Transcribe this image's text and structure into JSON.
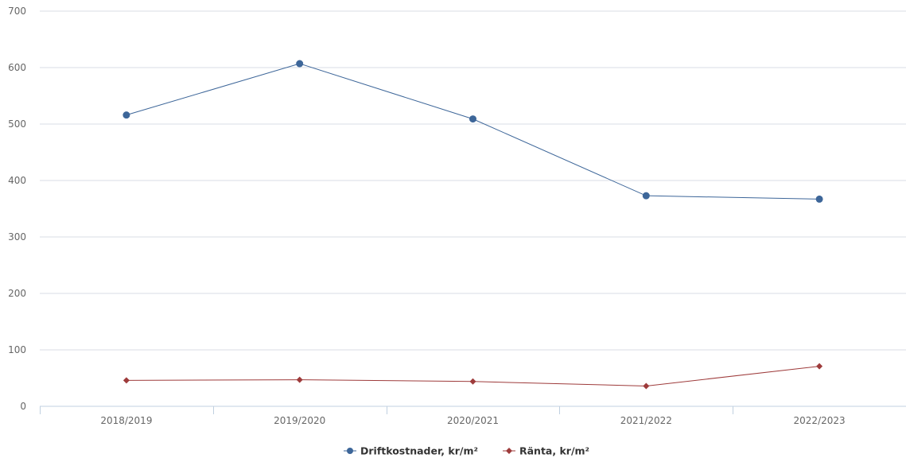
{
  "chart_data": {
    "type": "line",
    "categories": [
      "2018/2019",
      "2019/2020",
      "2020/2021",
      "2021/2022",
      "2022/2023"
    ],
    "series": [
      {
        "name": "Driftkostnader, kr/m²",
        "values": [
          516,
          607,
          509,
          373,
          367
        ],
        "color": "#3d6699",
        "marker": "circle"
      },
      {
        "name": "Ränta, kr/m²",
        "values": [
          46,
          47,
          44,
          36,
          71
        ],
        "color": "#9e3b3b",
        "marker": "diamond"
      }
    ],
    "y_ticks": [
      "0",
      "100",
      "200",
      "300",
      "400",
      "500",
      "600",
      "700"
    ],
    "ylim": [
      0,
      700
    ],
    "grid": true,
    "legend_position": "bottom-center"
  }
}
